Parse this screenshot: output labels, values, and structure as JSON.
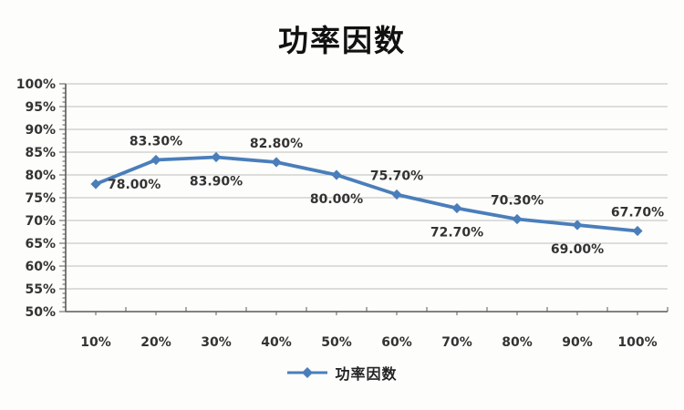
{
  "title": "功率因数",
  "legend": {
    "series_label": "功率因数"
  },
  "colors": {
    "series": "#4A7EBB",
    "grid": "#BDBDBD",
    "axis": "#595959",
    "text": "#333333",
    "background": "#fdfdfb"
  },
  "chart_data": {
    "type": "line",
    "title": "功率因数",
    "xlabel": "",
    "ylabel": "",
    "categories": [
      "10%",
      "20%",
      "30%",
      "40%",
      "50%",
      "60%",
      "70%",
      "80%",
      "90%",
      "100%"
    ],
    "series": [
      {
        "name": "功率因数",
        "values": [
          78.0,
          83.3,
          83.9,
          82.8,
          80.0,
          75.7,
          72.7,
          70.3,
          69.0,
          67.7
        ]
      }
    ],
    "data_labels": [
      "78.00%",
      "83.30%",
      "83.90%",
      "82.80%",
      "80.00%",
      "75.70%",
      "72.70%",
      "70.30%",
      "69.00%",
      "67.70%"
    ],
    "data_label_positions": [
      "right",
      "above",
      "below",
      "above",
      "below",
      "above",
      "below",
      "above",
      "below",
      "above"
    ],
    "ylim": [
      50,
      100
    ],
    "y_major_step": 5,
    "y_minor_step": 1,
    "y_tick_labels": [
      "50%",
      "55%",
      "60%",
      "65%",
      "70%",
      "75%",
      "80%",
      "85%",
      "90%",
      "95%",
      "100%"
    ],
    "grid": true,
    "marker": "diamond",
    "legend_position": "bottom"
  }
}
